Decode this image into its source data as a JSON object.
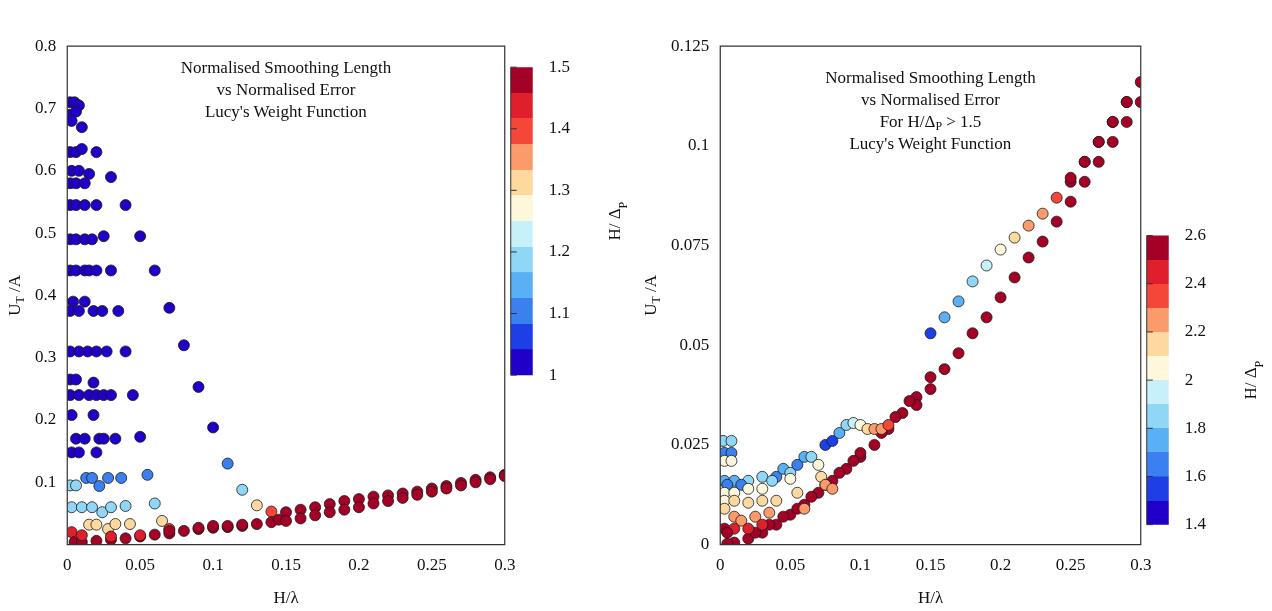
{
  "chart_data": [
    {
      "type": "scatter",
      "title": "Normalised Smoothing Length\nvs Normalised Error\nLucy's Weight Function",
      "xlabel": "H/λ",
      "ylabel": "U$_{T}$ /A",
      "clabel": "H/ Δ$_{P}$",
      "xlim": [
        0,
        0.3
      ],
      "ylim": [
        0,
        0.8
      ],
      "xticks": [
        0,
        0.05,
        0.1,
        0.15,
        0.2,
        0.25,
        0.3
      ],
      "yticks": [
        0.1,
        0.2,
        0.3,
        0.4,
        0.5,
        0.6,
        0.7,
        0.8
      ],
      "clim": [
        1,
        1.5
      ],
      "cticks": [
        1,
        1.1,
        1.2,
        1.3,
        1.4,
        1.5
      ],
      "marker": "circle",
      "grid": false,
      "legend": false,
      "series": [
        {
          "x": [
            0.002,
            0.005,
            0.008,
            0.002,
            0.006,
            0.003,
            0.01,
            0.002,
            0.006,
            0.01,
            0.02,
            0.003,
            0.008,
            0.015,
            0.002,
            0.006,
            0.012,
            0.03,
            0.002,
            0.006,
            0.012,
            0.02,
            0.04,
            0.002,
            0.006,
            0.012,
            0.017,
            0.025,
            0.05,
            0.002,
            0.006,
            0.012,
            0.015,
            0.02,
            0.03,
            0.06,
            0.004,
            0.012,
            0.002,
            0.008,
            0.018,
            0.024,
            0.035,
            0.07,
            0.002,
            0.008,
            0.014,
            0.02,
            0.027,
            0.04,
            0.08,
            0.002,
            0.006,
            0.018,
            0.002,
            0.008,
            0.015,
            0.02,
            0.025,
            0.03,
            0.045,
            0.09,
            0.003,
            0.018,
            0.006,
            0.012,
            0.022,
            0.025,
            0.033,
            0.05,
            0.1,
            0.003,
            0.008,
            0.02,
            0.11,
            0.12,
            0.13,
            0.14,
            0.055,
            0.06,
            0.065,
            0.07,
            0.002,
            0.006,
            0.013,
            0.017,
            0.022,
            0.028,
            0.037,
            0.003,
            0.01,
            0.017,
            0.024,
            0.03,
            0.04,
            0.015,
            0.02,
            0.028,
            0.033,
            0.043,
            0.003,
            0.005,
            0.01,
            0.02,
            0.03,
            0.04,
            0.05,
            0.06,
            0.07,
            0.08,
            0.09,
            0.1,
            0.11,
            0.12,
            0.13,
            0.14,
            0.145,
            0.01,
            0.03,
            0.05,
            0.07,
            0.09,
            0.1,
            0.11,
            0.12,
            0.15,
            0.16,
            0.17,
            0.18,
            0.19,
            0.2,
            0.21,
            0.22,
            0.23,
            0.24,
            0.25,
            0.26,
            0.27,
            0.28,
            0.29,
            0.3,
            0.15,
            0.16,
            0.17,
            0.18,
            0.19,
            0.2,
            0.21,
            0.22,
            0.23,
            0.24,
            0.25,
            0.26,
            0.27,
            0.28,
            0.29,
            0.3
          ],
          "values": [
            0.71,
            0.71,
            0.705,
            0.69,
            0.695,
            0.68,
            0.67,
            0.63,
            0.63,
            0.635,
            0.63,
            0.6,
            0.6,
            0.595,
            0.58,
            0.58,
            0.58,
            0.59,
            0.545,
            0.545,
            0.545,
            0.545,
            0.545,
            0.49,
            0.49,
            0.49,
            0.49,
            0.495,
            0.495,
            0.44,
            0.44,
            0.44,
            0.44,
            0.44,
            0.44,
            0.44,
            0.39,
            0.39,
            0.375,
            0.375,
            0.375,
            0.375,
            0.375,
            0.38,
            0.31,
            0.31,
            0.31,
            0.31,
            0.31,
            0.31,
            0.32,
            0.265,
            0.265,
            0.26,
            0.24,
            0.24,
            0.24,
            0.24,
            0.24,
            0.24,
            0.24,
            0.253,
            0.208,
            0.208,
            0.17,
            0.17,
            0.17,
            0.17,
            0.17,
            0.173,
            0.188,
            0.148,
            0.148,
            0.148,
            0.13,
            0.088,
            0.063,
            0.053,
            0.112,
            0.066,
            0.038,
            0.025,
            0.095,
            0.095,
            0.107,
            0.107,
            0.094,
            0.107,
            0.107,
            0.06,
            0.06,
            0.06,
            0.052,
            0.06,
            0.062,
            0.032,
            0.032,
            0.025,
            0.033,
            0.033,
            0.02,
            0.004,
            0.004,
            0.006,
            0.008,
            0.01,
            0.013,
            0.016,
            0.018,
            0.022,
            0.025,
            0.027,
            0.028,
            0.03,
            0.033,
            0.036,
            0.04,
            0.015,
            0.013,
            0.015,
            0.022,
            0.027,
            0.03,
            0.03,
            0.032,
            0.052,
            0.056,
            0.06,
            0.065,
            0.07,
            0.073,
            0.077,
            0.079,
            0.082,
            0.085,
            0.09,
            0.094,
            0.099,
            0.104,
            0.108,
            0.112,
            0.038,
            0.042,
            0.047,
            0.052,
            0.056,
            0.06,
            0.066,
            0.07,
            0.075,
            0.08,
            0.085,
            0.09,
            0.095,
            0.1,
            0.105,
            0.11
          ],
          "cvalues": [
            1,
            1,
            1,
            1,
            1,
            1,
            1,
            1,
            1,
            1,
            1,
            1,
            1,
            1,
            1,
            1,
            1,
            1,
            1,
            1,
            1,
            1,
            1,
            1,
            1,
            1,
            1,
            1,
            1,
            1,
            1,
            1,
            1,
            1,
            1,
            1,
            1,
            1,
            1,
            1,
            1,
            1,
            1,
            1,
            1,
            1,
            1,
            1,
            1,
            1,
            1,
            1,
            1,
            1,
            1,
            1,
            1,
            1,
            1,
            1,
            1,
            1,
            1,
            1,
            1,
            1,
            1,
            1,
            1,
            1,
            1,
            1,
            1,
            1,
            1.1,
            1.2,
            1.3,
            1.4,
            1.1,
            1.2,
            1.3,
            1.4,
            1.2,
            1.2,
            1.1,
            1.1,
            1.1,
            1.1,
            1.1,
            1.2,
            1.2,
            1.2,
            1.2,
            1.2,
            1.2,
            1.3,
            1.3,
            1.3,
            1.3,
            1.3,
            1.45,
            1.5,
            1.5,
            1.5,
            1.5,
            1.5,
            1.5,
            1.5,
            1.5,
            1.5,
            1.5,
            1.5,
            1.5,
            1.5,
            1.5,
            1.5,
            1.5,
            1.45,
            1.45,
            1.45,
            1.5,
            1.5,
            1.5,
            1.5,
            1.5,
            1.5,
            1.5,
            1.5,
            1.5,
            1.5,
            1.5,
            1.5,
            1.5,
            1.5,
            1.5,
            1.5,
            1.5,
            1.5,
            1.5,
            1.5,
            1.5,
            1.5,
            1.5,
            1.5,
            1.5,
            1.5,
            1.5,
            1.5,
            1.5,
            1.5,
            1.5,
            1.5,
            1.5,
            1.5,
            1.5,
            1.5,
            1.5
          ]
        }
      ]
    },
    {
      "type": "scatter",
      "title": "Normalised Smoothing Length\nvs Normalised Error\nFor H/Δ$_{P}$ > 1.5\nLucy's Weight Function",
      "xlabel": "H/λ",
      "ylabel": "U$_{T}$ /A",
      "clabel": "H/ Δ$_{P}$",
      "xlim": [
        0,
        0.3
      ],
      "ylim": [
        0,
        0.125
      ],
      "xticks": [
        0,
        0.05,
        0.1,
        0.15,
        0.2,
        0.25,
        0.3
      ],
      "yticks": [
        0,
        0.025,
        0.05,
        0.075,
        0.1,
        0.125
      ],
      "clim": [
        1.4,
        2.6
      ],
      "cticks": [
        1.4,
        1.6,
        1.8,
        2,
        2.2,
        2.4,
        2.6
      ],
      "marker": "circle",
      "grid": false,
      "legend": false,
      "series": [
        {
          "x": [
            0.3,
            0.3,
            0.29,
            0.29,
            0.28,
            0.28,
            0.27,
            0.27,
            0.26,
            0.26,
            0.25,
            0.25,
            0.24,
            0.23,
            0.22,
            0.21,
            0.2,
            0.19,
            0.18,
            0.17,
            0.16,
            0.15,
            0.15,
            0.14,
            0.14,
            0.135,
            0.13,
            0.125,
            0.12,
            0.115,
            0.11,
            0.1,
            0.09,
            0.08,
            0.07,
            0.06,
            0.05,
            0.04,
            0.03,
            0.02,
            0.01,
            0.005,
            0.1,
            0.095,
            0.085,
            0.075,
            0.065,
            0.055,
            0.045,
            0.035,
            0.025,
            0.15,
            0.16,
            0.17,
            0.18,
            0.19,
            0.2,
            0.21,
            0.22,
            0.23,
            0.24,
            0.25,
            0.26,
            0.27,
            0.28,
            0.29,
            0.075,
            0.08,
            0.085,
            0.09,
            0.095,
            0.1,
            0.105,
            0.11,
            0.115,
            0.12,
            0.04,
            0.045,
            0.05,
            0.055,
            0.06,
            0.065,
            0.07,
            0.072,
            0.075,
            0.08,
            0.002,
            0.008,
            0.003,
            0.008,
            0.003,
            0.008,
            0.003,
            0.01,
            0.02,
            0.03,
            0.037,
            0.005,
            0.015,
            0.003,
            0.01,
            0.02,
            0.03,
            0.05,
            0.003,
            0.01,
            0.02,
            0.03,
            0.04,
            0.055,
            0.003,
            0.01,
            0.015,
            0.025,
            0.035,
            0.06,
            0.003,
            0.01,
            0.02,
            0.03,
            0.005
          ],
          "values": [
            0.116,
            0.111,
            0.111,
            0.106,
            0.106,
            0.101,
            0.101,
            0.096,
            0.096,
            0.091,
            0.091,
            0.086,
            0.081,
            0.076,
            0.072,
            0.067,
            0.062,
            0.057,
            0.053,
            0.048,
            0.044,
            0.039,
            0.042,
            0.037,
            0.035,
            0.036,
            0.033,
            0.032,
            0.029,
            0.028,
            0.025,
            0.022,
            0.019,
            0.016,
            0.013,
            0.01,
            0.0075,
            0.005,
            0.003,
            0.0015,
            0.0005,
            0.0002,
            0.023,
            0.021,
            0.018,
            0.015,
            0.012,
            0.009,
            0.007,
            0.005,
            0.003,
            0.053,
            0.057,
            0.061,
            0.066,
            0.07,
            0.074,
            0.077,
            0.08,
            0.083,
            0.087,
            0.092,
            0.096,
            0.101,
            0.106,
            0.111,
            0.025,
            0.026,
            0.028,
            0.03,
            0.0305,
            0.03,
            0.029,
            0.029,
            0.029,
            0.03,
            0.017,
            0.019,
            0.018,
            0.02,
            0.022,
            0.022,
            0.02,
            0.017,
            0.015,
            0.014,
            0.026,
            0.026,
            0.023,
            0.023,
            0.021,
            0.021,
            0.016,
            0.016,
            0.016,
            0.017,
            0.016,
            0.015,
            0.015,
            0.013,
            0.013,
            0.014,
            0.014,
            0.0165,
            0.011,
            0.011,
            0.0105,
            0.011,
            0.011,
            0.013,
            0.009,
            0.007,
            0.006,
            0.007,
            0.008,
            0.009,
            0.004,
            0.004,
            0.004,
            0.005,
            0.003
          ],
          "cvalues": [
            2.5,
            2.5,
            2.5,
            2.5,
            2.5,
            2.5,
            2.5,
            2.5,
            2.5,
            2.5,
            2.5,
            2.5,
            2.5,
            2.5,
            2.5,
            2.5,
            2.5,
            2.5,
            2.5,
            2.5,
            2.5,
            2.5,
            2.5,
            2.5,
            2.5,
            2.5,
            2.5,
            2.5,
            2.5,
            2.5,
            2.5,
            2.5,
            2.5,
            2.5,
            2.5,
            2.5,
            2.5,
            2.5,
            2.5,
            2.5,
            2.5,
            2.5,
            2.5,
            2.5,
            2.5,
            2.5,
            2.5,
            2.5,
            2.5,
            2.5,
            2.5,
            1.5,
            1.7,
            1.75,
            1.85,
            1.9,
            2,
            2.1,
            2.2,
            2.25,
            2.35,
            2.5,
            2.5,
            2.5,
            2.5,
            2.5,
            1.5,
            1.55,
            1.7,
            1.85,
            1.9,
            2,
            2.1,
            2.2,
            2.3,
            2.35,
            1.6,
            1.75,
            1.8,
            1.6,
            1.75,
            1.85,
            2,
            2.1,
            2.2,
            2.3,
            1.8,
            1.8,
            1.6,
            1.6,
            2,
            2,
            1.75,
            1.7,
            1.8,
            1.85,
            1.8,
            1.6,
            1.65,
            2,
            2,
            2,
            2,
            2,
            2.05,
            2.1,
            2.15,
            2.15,
            2.15,
            2.15,
            2.15,
            2.25,
            2.25,
            2.3,
            2.3,
            2.3,
            2.5,
            2.45,
            2.4,
            2.4,
            2.5
          ]
        }
      ]
    }
  ]
}
